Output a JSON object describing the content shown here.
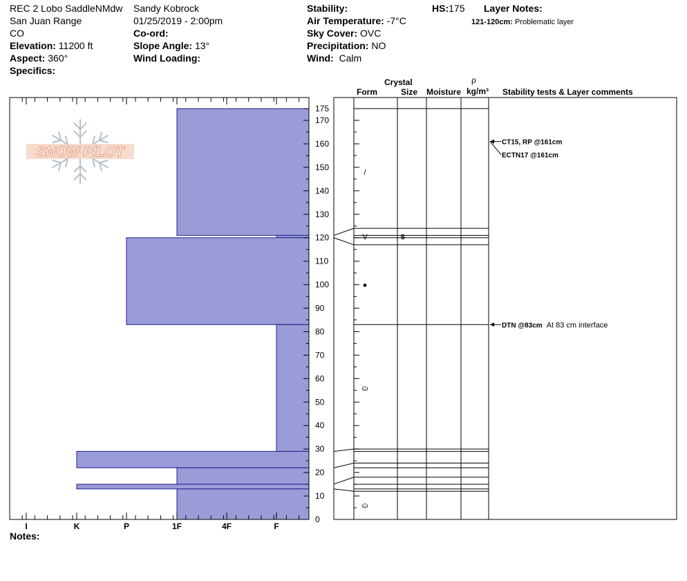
{
  "header": {
    "location": "REC 2 Lobo SaddleNMdw",
    "range": "San Juan Range",
    "state": "CO",
    "elevation_label": "Elevation:",
    "elevation_value": "11200 ft",
    "aspect_label": "Aspect:",
    "aspect_value": "360°",
    "specifics_label": "Specifics:",
    "observer": "Sandy Kobrock",
    "datetime": "01/25/2019 - 2:00pm",
    "coord_label": "Co-ord:",
    "slope_label": "Slope Angle:",
    "slope_value": "13°",
    "wind_loading_label": "Wind Loading:",
    "stability_label": "Stability:",
    "air_temp_label": "Air Temperature:",
    "air_temp_value": "-7°C",
    "sky_label": "Sky Cover:",
    "sky_value": "OVC",
    "precip_label": "Precipitation:",
    "precip_value": "NO",
    "wind_label": "Wind:",
    "wind_value": "Calm",
    "hs_label": "HS:",
    "hs_value": "175",
    "layer_notes_label": "Layer Notes:",
    "layer_note_range": "121-120cm:",
    "layer_note_text": "Problematic layer"
  },
  "columns": {
    "crystal": "Crystal",
    "form": "Form",
    "size": "Size",
    "moisture": "Moisture",
    "rho": "ρ",
    "density_unit": "kg/m³",
    "stability_comments": "Stability tests & Layer comments"
  },
  "notes_label": "Notes:",
  "logo_text": "SNOW PILOT",
  "colors": {
    "hardness_fill": "#9b9bd7",
    "hardness_stroke": "#1e1e8c",
    "logo": "#e9a586",
    "snowflake": "#b4c1cc"
  },
  "chart_data": {
    "type": "bar",
    "orientation": "horizontal",
    "title": "",
    "xlabel": "",
    "ylabel": "",
    "x_tick_labels": [
      "I",
      "K",
      "P",
      "1F",
      "4F",
      "F"
    ],
    "ylim": [
      0,
      175
    ],
    "y_ticks": [
      0,
      10,
      20,
      30,
      40,
      50,
      60,
      70,
      80,
      90,
      100,
      110,
      120,
      130,
      140,
      150,
      160,
      170,
      175
    ],
    "hardness_layers": [
      {
        "bottom": 121,
        "top": 175,
        "hardness": "1F"
      },
      {
        "bottom": 120,
        "top": 121,
        "hardness": "F"
      },
      {
        "bottom": 83,
        "top": 120,
        "hardness": "P"
      },
      {
        "bottom": 29,
        "top": 83,
        "hardness": "F"
      },
      {
        "bottom": 22,
        "top": 29,
        "hardness": "K"
      },
      {
        "bottom": 15,
        "top": 22,
        "hardness": "1F"
      },
      {
        "bottom": 13,
        "top": 15,
        "hardness": "K"
      },
      {
        "bottom": 0,
        "top": 13,
        "hardness": "1F"
      }
    ],
    "layer_boundaries": [
      175,
      121,
      120,
      83,
      29,
      22,
      15,
      13,
      0
    ],
    "grain_forms": [
      {
        "height": 148,
        "symbol": "/"
      },
      {
        "height": 120.5,
        "symbol": "V",
        "size": "5"
      },
      {
        "height": 100,
        "symbol": "●"
      },
      {
        "height": 56,
        "symbol": "⛀"
      },
      {
        "height": 6,
        "symbol": "⛀"
      }
    ],
    "tests": [
      {
        "height": 161,
        "label": "CT15, RP @161cm",
        "comment": ""
      },
      {
        "height": 161,
        "label": "ECTN17 @161cm",
        "comment": ""
      },
      {
        "height": 83,
        "label": "DTN @83cm",
        "comment": "At 83 cm interface"
      }
    ]
  }
}
